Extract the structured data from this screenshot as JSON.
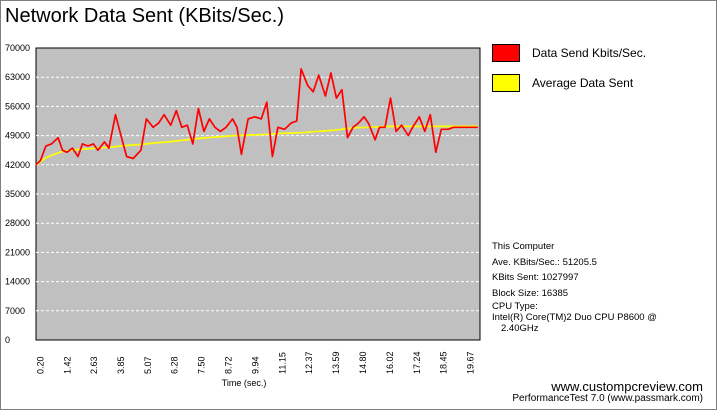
{
  "title": "Network Data Sent (KBits/Sec.)",
  "chart_data": {
    "type": "line",
    "title": "Network Data Sent (KBits/Sec.)",
    "xlabel": "Time (sec.)",
    "ylabel": "",
    "ylim": [
      0,
      70000
    ],
    "xlim": [
      0,
      20.1
    ],
    "y_ticks": [
      "70000",
      "63000",
      "56000",
      "49000",
      "42000",
      "35000",
      "28000",
      "21000",
      "14000",
      "7000",
      "0"
    ],
    "x_ticks": [
      "0.20",
      "1.42",
      "2.63",
      "3.85",
      "5.07",
      "6.28",
      "7.50",
      "8.72",
      "9.94",
      "11.15",
      "12.37",
      "13.59",
      "14.80",
      "16.02",
      "17.24",
      "18.45",
      "19.67"
    ],
    "grid": true,
    "legend": "right",
    "series": [
      {
        "name": "Data Send Kbits/Sec.",
        "color": "#ff0000",
        "x": [
          0.0,
          0.2,
          0.45,
          0.7,
          1.0,
          1.2,
          1.4,
          1.65,
          1.9,
          2.1,
          2.35,
          2.6,
          2.8,
          3.1,
          3.3,
          3.6,
          3.85,
          4.1,
          4.4,
          4.75,
          5.0,
          5.3,
          5.55,
          5.8,
          6.1,
          6.35,
          6.6,
          6.85,
          7.1,
          7.35,
          7.6,
          7.85,
          8.1,
          8.35,
          8.6,
          8.9,
          9.1,
          9.3,
          9.6,
          9.9,
          10.2,
          10.45,
          10.7,
          10.95,
          11.25,
          11.55,
          11.8,
          12.0,
          12.3,
          12.55,
          12.8,
          13.1,
          13.35,
          13.6,
          13.85,
          14.1,
          14.35,
          14.6,
          14.85,
          15.05,
          15.35,
          15.55,
          15.8,
          16.05,
          16.3,
          16.55,
          16.85,
          17.05,
          17.35,
          17.6,
          17.85,
          18.1,
          18.35,
          18.65,
          18.9,
          19.2,
          19.4,
          19.6,
          19.8,
          20.0
        ],
        "values": [
          42000,
          43000,
          46500,
          47000,
          48500,
          45500,
          45000,
          46000,
          44000,
          47000,
          46500,
          47000,
          45500,
          47500,
          46000,
          54000,
          49000,
          44000,
          43500,
          45500,
          53000,
          51000,
          52000,
          54000,
          51500,
          55000,
          51000,
          51500,
          47000,
          55500,
          50000,
          53000,
          51000,
          50000,
          51000,
          53000,
          51000,
          44500,
          53000,
          53500,
          53000,
          57000,
          44000,
          51000,
          50500,
          52000,
          52500,
          65000,
          61000,
          59500,
          63500,
          58500,
          64000,
          58000,
          60000,
          48500,
          51000,
          52000,
          53500,
          52000,
          48000,
          51000,
          51000,
          58000,
          50000,
          51500,
          49000,
          51000,
          53500,
          50000,
          54000,
          45000,
          50500,
          50500,
          51000,
          51000,
          51000,
          51000,
          51000,
          51000
        ],
        "_note_unused": ""
      },
      {
        "name": "Average Data Sent",
        "color": "#ffff00",
        "x": [
          0.0,
          0.4,
          0.8,
          1.2,
          1.6,
          2.0,
          2.5,
          3.0,
          3.5,
          4.0,
          4.5,
          5.0,
          5.5,
          6.0,
          6.5,
          7.0,
          7.5,
          8.0,
          8.5,
          9.0,
          9.5,
          10.0,
          10.5,
          11.0,
          11.5,
          12.0,
          12.5,
          13.0,
          13.5,
          14.0,
          14.5,
          15.0,
          15.5,
          16.0,
          16.5,
          17.0,
          17.5,
          18.0,
          18.5,
          19.0,
          19.5,
          20.0
        ],
        "values": [
          42000,
          43500,
          44500,
          45200,
          45500,
          45700,
          45900,
          46100,
          46300,
          46600,
          46800,
          47000,
          47300,
          47500,
          47800,
          48100,
          48400,
          48600,
          48800,
          49000,
          49100,
          49200,
          49300,
          49500,
          49600,
          49700,
          49900,
          50100,
          50300,
          50600,
          50900,
          51000,
          51100,
          51200,
          51200,
          51200,
          51200,
          51200,
          51200,
          51200,
          51200,
          51200
        ]
      }
    ]
  },
  "legend": {
    "items": [
      {
        "label": "Data Send Kbits/Sec.",
        "color": "#ff0000"
      },
      {
        "label": "Average Data Sent",
        "color": "#ffff00"
      }
    ]
  },
  "info": {
    "computer": "This Computer",
    "ave": "Ave. KBits/Sec.: 51205.5",
    "sent": "KBits Sent: 1027997",
    "block": "Block Size: 16385",
    "cpu_type": "CPU Type:",
    "cpu_name": "Intel(R) Core(TM)2 Duo CPU P8600 @",
    "cpu_speed": "2.40GHz"
  },
  "watermark": "www.custompcreview.com",
  "credit": "PerformanceTest 7.0 (www.passmark.com)",
  "colors": {
    "plot_bg": "#c0c0c0",
    "grid": "#ffffff"
  }
}
